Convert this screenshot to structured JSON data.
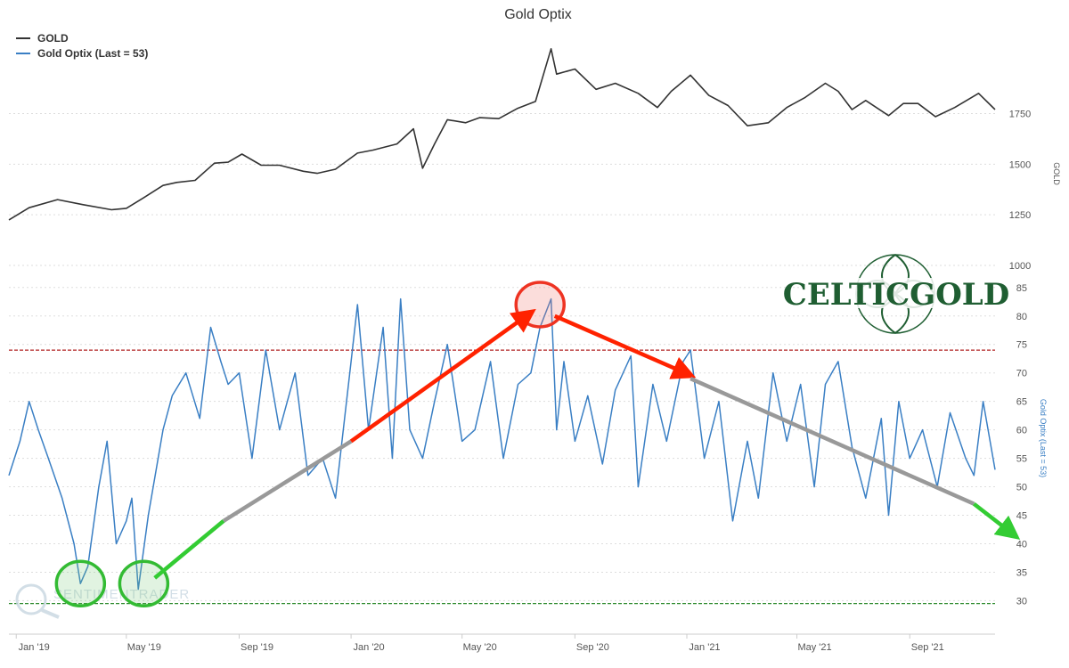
{
  "chart_data": {
    "type": "line",
    "title": "Gold Optix",
    "legend": {
      "placement": "top-left",
      "entries": [
        {
          "name": "GOLD",
          "color": "#333333"
        },
        {
          "name": "Gold Optix (Last = 53)",
          "color": "#3a7fc4"
        }
      ]
    },
    "x_axis": {
      "type": "date",
      "range": [
        "2018-12-24",
        "2021-12-03"
      ],
      "tick_labels": [
        {
          "date": "2019-01-01",
          "label": "Jan '19"
        },
        {
          "date": "2019-05-01",
          "label": "May '19"
        },
        {
          "date": "2019-09-01",
          "label": "Sep '19"
        },
        {
          "date": "2020-01-01",
          "label": "Jan '20"
        },
        {
          "date": "2020-05-01",
          "label": "May '20"
        },
        {
          "date": "2020-09-01",
          "label": "Sep '20"
        },
        {
          "date": "2021-01-01",
          "label": "Jan '21"
        },
        {
          "date": "2021-05-01",
          "label": "May '21"
        },
        {
          "date": "2021-09-01",
          "label": "Sep '21"
        }
      ]
    },
    "y_axis_gold": {
      "label": "GOLD",
      "range": [
        1000,
        2100
      ],
      "ticks": [
        1000,
        1250,
        1500,
        1750
      ],
      "tick_labels": [
        "1000",
        "1250",
        "1500",
        "1750"
      ]
    },
    "y_axis_optix": {
      "label": "Gold Optix (Last = 53)",
      "range": [
        26,
        87
      ],
      "ticks": [
        30,
        35,
        40,
        45,
        50,
        55,
        60,
        65,
        70,
        75,
        80,
        85
      ],
      "tick_labels": [
        "30",
        "35",
        "40",
        "45",
        "50",
        "55",
        "60",
        "65",
        "70",
        "75",
        "80",
        "85"
      ]
    },
    "reference_lines": [
      {
        "axis": "optix",
        "value": 74,
        "color": "#b22222",
        "style": "dashed"
      },
      {
        "axis": "optix",
        "value": 29.5,
        "color": "#2e8b2e",
        "style": "dashed"
      }
    ],
    "series": [
      {
        "name": "GOLD",
        "axis": "gold",
        "color": "#333333",
        "x": [
          "2018-12-24",
          "2019-01-15",
          "2019-02-15",
          "2019-03-15",
          "2019-04-15",
          "2019-05-01",
          "2019-05-20",
          "2019-06-10",
          "2019-06-25",
          "2019-07-15",
          "2019-08-05",
          "2019-08-20",
          "2019-09-04",
          "2019-09-25",
          "2019-10-15",
          "2019-11-10",
          "2019-11-25",
          "2019-12-15",
          "2020-01-08",
          "2020-01-25",
          "2020-02-20",
          "2020-03-09",
          "2020-03-19",
          "2020-04-01",
          "2020-04-15",
          "2020-05-05",
          "2020-05-20",
          "2020-06-10",
          "2020-06-30",
          "2020-07-20",
          "2020-08-06",
          "2020-08-12",
          "2020-09-01",
          "2020-09-24",
          "2020-10-15",
          "2020-11-09",
          "2020-11-30",
          "2020-12-15",
          "2021-01-05",
          "2021-01-25",
          "2021-02-15",
          "2021-03-08",
          "2021-03-31",
          "2021-04-20",
          "2021-05-10",
          "2021-06-01",
          "2021-06-15",
          "2021-06-30",
          "2021-07-15",
          "2021-08-09",
          "2021-08-25",
          "2021-09-10",
          "2021-09-29",
          "2021-10-20",
          "2021-11-15",
          "2021-12-03"
        ],
        "y": [
          1225,
          1285,
          1325,
          1300,
          1275,
          1282,
          1335,
          1395,
          1410,
          1420,
          1505,
          1510,
          1550,
          1495,
          1495,
          1465,
          1455,
          1475,
          1555,
          1570,
          1600,
          1675,
          1480,
          1600,
          1720,
          1705,
          1730,
          1725,
          1775,
          1810,
          2070,
          1945,
          1970,
          1870,
          1900,
          1850,
          1780,
          1860,
          1940,
          1840,
          1790,
          1690,
          1705,
          1780,
          1830,
          1900,
          1860,
          1770,
          1815,
          1740,
          1800,
          1800,
          1735,
          1780,
          1850,
          1770
        ]
      },
      {
        "name": "Gold Optix (Last = 53)",
        "axis": "optix",
        "color": "#3a7fc4",
        "x": [
          "2018-12-24",
          "2019-01-05",
          "2019-01-15",
          "2019-01-25",
          "2019-02-05",
          "2019-02-20",
          "2019-03-05",
          "2019-03-12",
          "2019-03-20",
          "2019-04-01",
          "2019-04-10",
          "2019-04-20",
          "2019-05-01",
          "2019-05-07",
          "2019-05-14",
          "2019-05-25",
          "2019-06-10",
          "2019-06-20",
          "2019-07-05",
          "2019-07-20",
          "2019-08-01",
          "2019-08-12",
          "2019-08-20",
          "2019-09-01",
          "2019-09-15",
          "2019-09-30",
          "2019-10-15",
          "2019-11-01",
          "2019-11-15",
          "2019-12-01",
          "2019-12-15",
          "2020-01-01",
          "2020-01-08",
          "2020-01-20",
          "2020-02-05",
          "2020-02-15",
          "2020-02-24",
          "2020-03-05",
          "2020-03-19",
          "2020-04-01",
          "2020-04-15",
          "2020-05-01",
          "2020-05-15",
          "2020-06-01",
          "2020-06-15",
          "2020-07-01",
          "2020-07-15",
          "2020-07-25",
          "2020-08-06",
          "2020-08-12",
          "2020-08-20",
          "2020-09-01",
          "2020-09-15",
          "2020-10-01",
          "2020-10-15",
          "2020-11-01",
          "2020-11-09",
          "2020-11-25",
          "2020-12-10",
          "2020-12-28",
          "2021-01-05",
          "2021-01-20",
          "2021-02-05",
          "2021-02-20",
          "2021-03-08",
          "2021-03-20",
          "2021-04-05",
          "2021-04-20",
          "2021-05-05",
          "2021-05-20",
          "2021-06-01",
          "2021-06-15",
          "2021-06-30",
          "2021-07-15",
          "2021-08-01",
          "2021-08-09",
          "2021-08-20",
          "2021-09-01",
          "2021-09-15",
          "2021-10-01",
          "2021-10-15",
          "2021-11-01",
          "2021-11-10",
          "2021-11-20",
          "2021-12-03"
        ],
        "y": [
          52,
          58,
          65,
          60,
          55,
          48,
          40,
          33,
          36,
          50,
          58,
          40,
          44,
          48,
          32,
          45,
          60,
          66,
          70,
          62,
          78,
          72,
          68,
          70,
          55,
          74,
          60,
          70,
          52,
          55,
          48,
          72,
          82,
          60,
          78,
          55,
          83,
          60,
          55,
          65,
          75,
          58,
          60,
          72,
          55,
          68,
          70,
          78,
          83,
          60,
          72,
          58,
          66,
          54,
          67,
          73,
          50,
          68,
          58,
          72,
          74,
          55,
          65,
          44,
          58,
          48,
          70,
          58,
          68,
          50,
          68,
          72,
          57,
          48,
          62,
          45,
          65,
          55,
          60,
          50,
          63,
          55,
          52,
          65,
          53
        ]
      }
    ],
    "annotations": {
      "watermark": "SENTIMENTRADER",
      "logo": "CELTICGOLD",
      "arrows": [
        {
          "from": {
            "x": "2019-06-01",
            "y": 34
          },
          "to": {
            "x": "2019-08-15",
            "y": 44
          },
          "color": "#33cc33"
        },
        {
          "from": {
            "x": "2019-08-15",
            "y": 44
          },
          "to": {
            "x": "2020-01-01",
            "y": 58
          },
          "color": "#999999"
        },
        {
          "from": {
            "x": "2020-01-01",
            "y": 58
          },
          "to": {
            "x": "2020-07-10",
            "y": 80
          },
          "color": "#ff2200"
        },
        {
          "from": {
            "x": "2020-08-10",
            "y": 80
          },
          "to": {
            "x": "2020-12-30",
            "y": 70
          },
          "color": "#ff2200"
        },
        {
          "from": {
            "x": "2021-01-05",
            "y": 69
          },
          "to": {
            "x": "2021-11-10",
            "y": 47
          },
          "color": "#999999"
        },
        {
          "from": {
            "x": "2021-11-10",
            "y": 47
          },
          "to": {
            "x": "2021-12-20",
            "y": 42
          },
          "color": "#33cc33"
        }
      ],
      "circles": [
        {
          "x": "2019-03-12",
          "y": 33,
          "color": "#33bb33"
        },
        {
          "x": "2019-05-20",
          "y": 33,
          "color": "#33bb33"
        },
        {
          "x": "2020-07-25",
          "y": 82,
          "color": "#ee3322"
        }
      ]
    }
  }
}
